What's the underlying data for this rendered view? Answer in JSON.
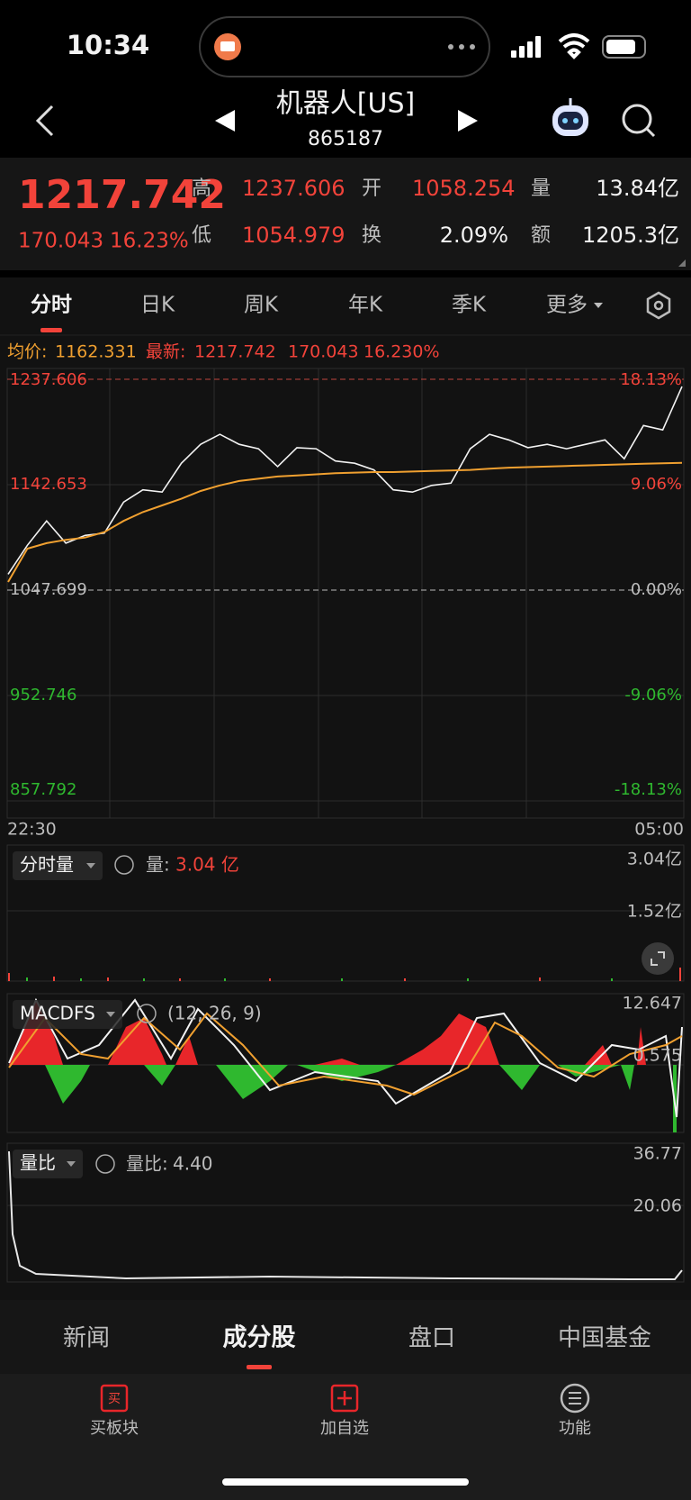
{
  "status": {
    "time": "10:34"
  },
  "header": {
    "title": "机器人[US]",
    "code": "865187"
  },
  "quote": {
    "price": "1217.742",
    "change": "170.043",
    "pct": "16.23%",
    "fields": [
      {
        "label": "高",
        "value": "1237.606"
      },
      {
        "label": "开",
        "value": "1058.254"
      },
      {
        "label": "量",
        "value": "13.84亿"
      },
      {
        "label": "低",
        "value": "1054.979"
      },
      {
        "label": "换",
        "value": "2.09%"
      },
      {
        "label": "额",
        "value": "1205.3亿"
      }
    ]
  },
  "tabs": [
    "分时",
    "日K",
    "周K",
    "年K",
    "季K",
    "更多"
  ],
  "info": {
    "avg_label": "均价:",
    "avg": "1162.331",
    "latest_label": "最新:",
    "latest": "1217.742",
    "change": "170.043",
    "pct": "16.230%"
  },
  "price_chart": {
    "ylim": [
      857.792,
      1237.606
    ],
    "yticks": [
      1237.606,
      1142.653,
      1047.699,
      952.746,
      857.792
    ],
    "pct_labels": [
      "18.13%",
      "9.06%",
      "0.00%",
      "-9.06%",
      "-18.13%"
    ],
    "start_time": "22:30",
    "end_time": "05:00",
    "price": [
      1062,
      1088,
      1110,
      1090,
      1097,
      1099,
      1127,
      1138,
      1136,
      1162,
      1179,
      1188,
      1179,
      1175,
      1159,
      1176,
      1175,
      1164,
      1162,
      1156,
      1138,
      1136,
      1142,
      1144,
      1175,
      1188,
      1183,
      1176,
      1179,
      1175,
      1179,
      1183,
      1166,
      1196,
      1192,
      1231
    ],
    "avg": [
      1055,
      1085,
      1090,
      1093,
      1095,
      1100,
      1110,
      1118,
      1124,
      1130,
      1137,
      1142,
      1146,
      1148,
      1150,
      1151,
      1152,
      1153,
      1153.5,
      1154,
      1154,
      1154.5,
      1155,
      1155.5,
      1156,
      1157,
      1158,
      1158.5,
      1159,
      1159.5,
      1160,
      1160.5,
      1161,
      1161.5,
      1162,
      1162.331
    ]
  },
  "volume": {
    "selector": "分时量",
    "label": "量:",
    "value": "3.04 亿",
    "ticks": [
      "3.04亿",
      "1.52亿"
    ]
  },
  "macd": {
    "selector": "MACDFS",
    "params": "(12, 26, 9)",
    "ticks": [
      "12.647",
      "0.575"
    ]
  },
  "ratio": {
    "selector": "量比",
    "label": "量比:",
    "value": "4.40",
    "ticks": [
      "36.77",
      "20.06"
    ]
  },
  "bottom_tabs": [
    "新闻",
    "成分股",
    "盘口",
    "中国基金"
  ],
  "tools": [
    "买板块",
    "加自选",
    "功能"
  ]
}
